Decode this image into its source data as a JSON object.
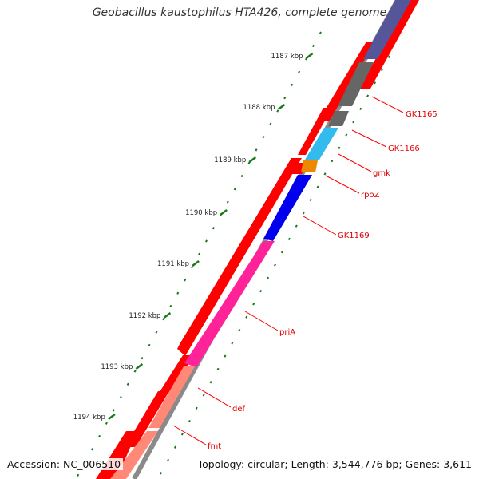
{
  "title": "Geobacillus kaustophilus HTA426, complete genome",
  "footer": {
    "accession": "Accession: NC_006510",
    "summary": "Topology: circular; Length: 3,544,776 bp; Genes: 3,611"
  },
  "ticks": [
    "1187 kbp",
    "1188 kbp",
    "1189 kbp",
    "1190 kbp",
    "1191 kbp",
    "1192 kbp",
    "1193 kbp",
    "1194 kbp"
  ],
  "genes": [
    {
      "name": "GK1165",
      "color": "#666666"
    },
    {
      "name": "GK1166",
      "color": "#666666"
    },
    {
      "name": "gmk",
      "color": "#33bbee"
    },
    {
      "name": "rpoZ",
      "color": "#ee8800"
    },
    {
      "name": "GK1169",
      "color": "#0000ee"
    },
    {
      "name": "priA",
      "color": "#ff2299"
    },
    {
      "name": "def",
      "color": "#ff8877"
    },
    {
      "name": "fmt",
      "color": "#ff8877"
    }
  ],
  "colors": {
    "backbone": "#8a8a8a",
    "forward_genes": "#ff0000",
    "label_lines": "#ff0000",
    "ticks": "#1a7a1a",
    "top_gene": "#555599"
  }
}
